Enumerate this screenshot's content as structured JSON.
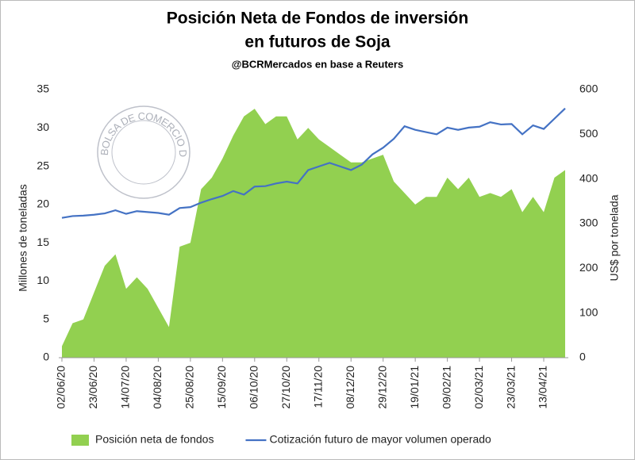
{
  "chart_data": {
    "type": "area-line",
    "title": [
      "Posición Neta de Fondos de inversión",
      "en futuros de Soja"
    ],
    "subtitle": "@BCRMercados  en base a Reuters",
    "watermark": "BOLSA DE COMERCIO DE ROSARIO",
    "ylabel": "Millones de toneladas",
    "y2label": "US$ por tonelada",
    "categories": [
      "02/06/20",
      null,
      null,
      "23/06/20",
      null,
      null,
      "14/07/20",
      null,
      null,
      "04/08/20",
      null,
      null,
      "25/08/20",
      null,
      null,
      "15/09/20",
      null,
      null,
      "06/10/20",
      null,
      null,
      "27/10/20",
      null,
      null,
      "17/11/20",
      null,
      null,
      "08/12/20",
      null,
      null,
      "29/12/20",
      null,
      null,
      "19/01/21",
      null,
      null,
      "09/02/21",
      null,
      null,
      "02/03/21",
      null,
      null,
      "23/03/21",
      null,
      null,
      "13/04/21",
      null,
      null
    ],
    "series": [
      {
        "name": "Posición neta de fondos",
        "color": "#92d050",
        "kind": "area",
        "values": [
          1.5,
          4.5,
          5,
          8.5,
          12,
          13.5,
          9,
          10.5,
          9,
          6.5,
          4,
          14.5,
          15,
          22,
          23.5,
          26,
          29,
          31.5,
          32.5,
          30.5,
          31.5,
          31.5,
          28.5,
          30,
          28.5,
          27.5,
          26.5,
          25.5,
          25.5,
          26,
          26.5,
          23,
          21.5,
          20,
          21,
          21,
          23.5,
          22,
          23.5,
          21,
          21.5,
          21,
          22,
          19,
          21,
          19,
          23.5,
          24.5
        ]
      },
      {
        "name": "Cotización futuro de mayor volumen operado",
        "color": "#4472c4",
        "kind": "line",
        "axis": "y2",
        "values": [
          313,
          317,
          318,
          320,
          323,
          330,
          322,
          328,
          326,
          324,
          320,
          335,
          337,
          347,
          355,
          362,
          373,
          365,
          383,
          384,
          390,
          394,
          390,
          420,
          428,
          436,
          428,
          420,
          432,
          455,
          470,
          490,
          518,
          510,
          505,
          500,
          515,
          510,
          515,
          517,
          527,
          522,
          523,
          500,
          520,
          512,
          535,
          558
        ]
      }
    ],
    "ylim": [
      0,
      35
    ],
    "yticks": [
      0,
      5,
      10,
      15,
      20,
      25,
      30,
      35
    ],
    "y2lim": [
      0,
      600
    ],
    "y2ticks": [
      0,
      100,
      200,
      300,
      400,
      500,
      600
    ],
    "legend": "bottom"
  }
}
